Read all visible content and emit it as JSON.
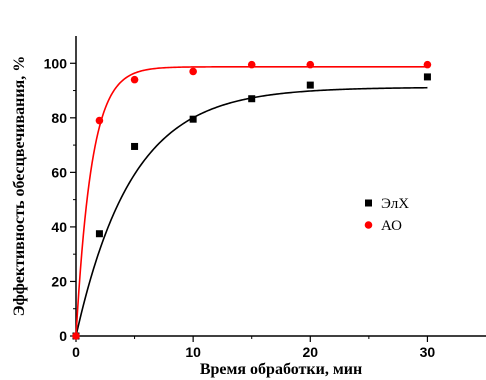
{
  "chart_data": {
    "type": "scatter",
    "xlabel": "Время обработки, мин",
    "ylabel": "Эффективность обесцвечивания, %",
    "xlim": [
      0,
      35
    ],
    "ylim": [
      0,
      110
    ],
    "x_ticks": [
      0,
      10,
      20,
      30
    ],
    "y_ticks": [
      0,
      20,
      40,
      60,
      80,
      100
    ],
    "legend_position": "right",
    "series": [
      {
        "name": "ЭлХ",
        "marker": "square",
        "color": "#000000",
        "points": [
          [
            0,
            0
          ],
          [
            2,
            37.5
          ],
          [
            5,
            69.5
          ],
          [
            10,
            79.5
          ],
          [
            15,
            87
          ],
          [
            20,
            92
          ],
          [
            30,
            95
          ]
        ],
        "fit_curve": {
          "model": "first-order",
          "ymax": 91.2,
          "k": 0.21
        }
      },
      {
        "name": "АО",
        "marker": "circle",
        "color": "#ff0000",
        "points": [
          [
            0,
            0
          ],
          [
            2,
            79
          ],
          [
            5,
            94
          ],
          [
            10,
            97
          ],
          [
            15,
            99.5
          ],
          [
            20,
            99.5
          ],
          [
            30,
            99.5
          ]
        ],
        "fit_curve": {
          "model": "first-order",
          "ymax": 98.7,
          "k": 0.75
        }
      }
    ]
  }
}
